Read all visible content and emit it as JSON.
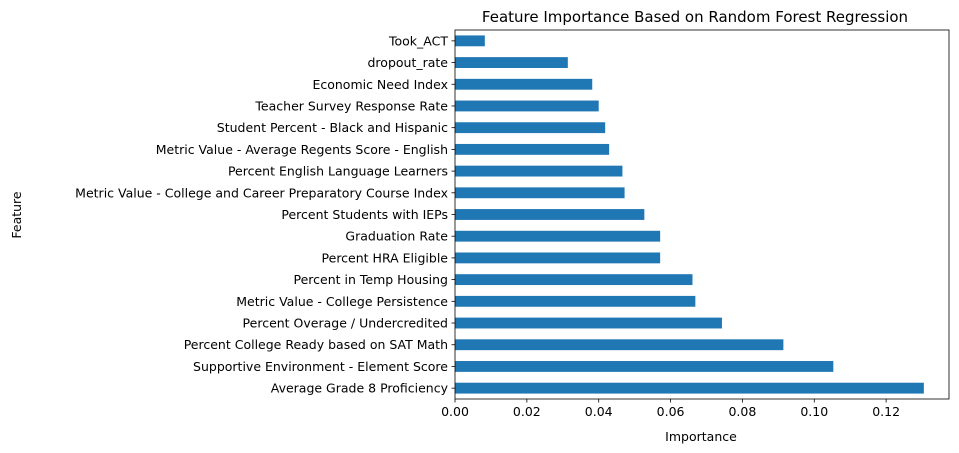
{
  "chart_data": {
    "type": "bar",
    "orientation": "horizontal",
    "title": "Feature Importance Based on Random Forest Regression",
    "xlabel": "Importance",
    "ylabel": "Feature",
    "xlim": [
      0,
      0.1375
    ],
    "xticks": [
      0.0,
      0.02,
      0.04,
      0.06,
      0.08,
      0.1,
      0.12
    ],
    "xtick_labels": [
      "0.00",
      "0.02",
      "0.04",
      "0.06",
      "0.08",
      "0.10",
      "0.12"
    ],
    "grid": false,
    "bar_color": "#1f77b4",
    "categories": [
      "Average Grade 8 Proficiency",
      "Supportive Environment - Element Score",
      "Percent College Ready based on SAT Math",
      "Percent Overage / Undercredited",
      "Metric Value - College Persistence",
      "Percent in Temp Housing",
      "Percent HRA Eligible",
      "Graduation Rate",
      "Percent Students with IEPs",
      "Metric Value - College and Career Preparatory Course Index",
      "Percent English Language Learners",
      "Metric Value - Average Regents Score - English",
      "Student Percent - Black and Hispanic",
      "Teacher Survey Response Rate",
      "Economic Need Index",
      "dropout_rate",
      "Took_ACT"
    ],
    "values": [
      0.1305,
      0.1053,
      0.0914,
      0.0743,
      0.0669,
      0.0661,
      0.0571,
      0.0571,
      0.0527,
      0.0472,
      0.0466,
      0.0429,
      0.0418,
      0.04,
      0.0382,
      0.0314,
      0.0083
    ]
  }
}
